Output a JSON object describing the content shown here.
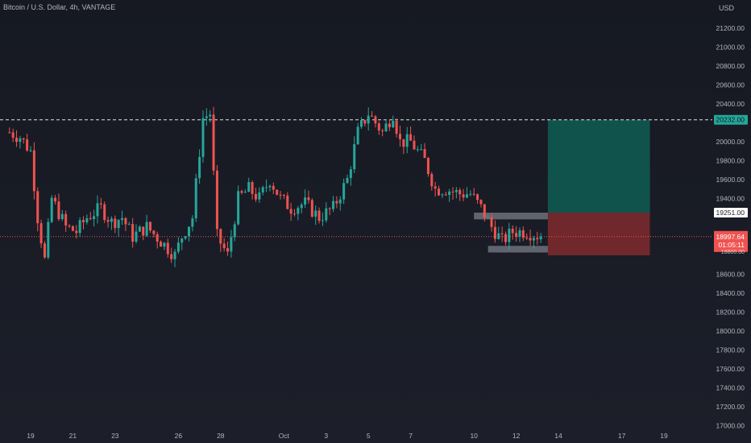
{
  "header": {
    "symbol_title": "Bitcoin / U.S. Dollar, 4h, VANTAGE",
    "currency": "USD"
  },
  "colors": {
    "background": "#1a1d26",
    "up": "#26a69a",
    "down": "#ef5350",
    "profit_zone": "#0f5a52",
    "loss_zone": "#7a2a2d",
    "text": "#b2b5be"
  },
  "price_axis": {
    "ticks": [
      "21200.00",
      "21000.00",
      "20800.00",
      "20600.00",
      "20400.00",
      "20000.00",
      "19800.00",
      "19600.00",
      "19400.00",
      "18600.00",
      "18400.00",
      "18200.00",
      "18000.00",
      "17800.00",
      "17600.00",
      "17400.00",
      "17200.00",
      "17000.00"
    ]
  },
  "price_labels": {
    "resistance": "20232.00",
    "stop": "19251.00",
    "current_price": "18997.64",
    "countdown": "01:05:11",
    "target_partial": "18800.00"
  },
  "time_axis": {
    "ticks": [
      "19",
      "21",
      "23",
      "26",
      "28",
      "Oct",
      "3",
      "5",
      "7",
      "10",
      "12",
      "14",
      "17",
      "19"
    ]
  },
  "chart_data": {
    "type": "candlestick",
    "title": "Bitcoin / U.S. Dollar, 4h, VANTAGE",
    "timeframe": "4h",
    "ylim": [
      17000,
      21300
    ],
    "resistance_level": 20232.0,
    "current_price": 18997.64,
    "position": {
      "entry": 19100,
      "take_profit": 20232.0,
      "stop_loss": 18800.0
    },
    "range_box": {
      "upper_band": [
        19180,
        19251
      ],
      "lower_band": [
        18830,
        18900
      ]
    },
    "anchors": [
      [
        "Sep 18 00:00",
        20100
      ],
      [
        "Sep 18 12:00",
        20050
      ],
      [
        "Sep 19 00:00",
        19900
      ],
      [
        "Sep 19 08:00",
        19200
      ],
      [
        "Sep 19 16:00",
        18750
      ],
      [
        "Sep 20 00:00",
        19400
      ],
      [
        "Sep 20 16:00",
        19100
      ],
      [
        "Sep 21 04:00",
        19050
      ],
      [
        "Sep 21 16:00",
        19200
      ],
      [
        "Sep 22 08:00",
        19300
      ],
      [
        "Sep 22 20:00",
        19150
      ],
      [
        "Sep 23 08:00",
        19200
      ],
      [
        "Sep 23 20:00",
        19000
      ],
      [
        "Sep 24 12:00",
        19100
      ],
      [
        "Sep 25 04:00",
        18950
      ],
      [
        "Sep 25 20:00",
        18800
      ],
      [
        "Sep 26 04:00",
        19000
      ],
      [
        "Sep 26 16:00",
        19200
      ],
      [
        "Sep 27 04:00",
        20250
      ],
      [
        "Sep 27 12:00",
        20300
      ],
      [
        "Sep 27 20:00",
        19000
      ],
      [
        "Sep 28 08:00",
        18800
      ],
      [
        "Sep 28 20:00",
        19400
      ],
      [
        "Sep 29 08:00",
        19500
      ],
      [
        "Sep 29 20:00",
        19400
      ],
      [
        "Sep 30 08:00",
        19600
      ],
      [
        "Sep 30 20:00",
        19400
      ],
      [
        "Oct 1 08:00",
        19300
      ],
      [
        "Oct 2 00:00",
        19350
      ],
      [
        "Oct 2 16:00",
        19200
      ],
      [
        "Oct 3 08:00",
        19300
      ],
      [
        "Oct 4 00:00",
        19600
      ],
      [
        "Oct 4 12:00",
        20100
      ],
      [
        "Oct 5 00:00",
        20300
      ],
      [
        "Oct 5 16:00",
        20100
      ],
      [
        "Oct 6 04:00",
        20300
      ],
      [
        "Oct 6 12:00",
        20000
      ],
      [
        "Oct 7 00:00",
        20000
      ],
      [
        "Oct 7 16:00",
        19800
      ],
      [
        "Oct 8 04:00",
        19500
      ],
      [
        "Oct 8 16:00",
        19500
      ],
      [
        "Oct 9 08:00",
        19450
      ],
      [
        "Oct 9 20:00",
        19450
      ],
      [
        "Oct 10 08:00",
        19300
      ],
      [
        "Oct 10 20:00",
        19100
      ],
      [
        "Oct 11 08:00",
        18950
      ],
      [
        "Oct 11 20:00",
        19050
      ],
      [
        "Oct 12 12:00",
        19050
      ],
      [
        "Oct 13 04:00",
        18997.64
      ]
    ]
  }
}
